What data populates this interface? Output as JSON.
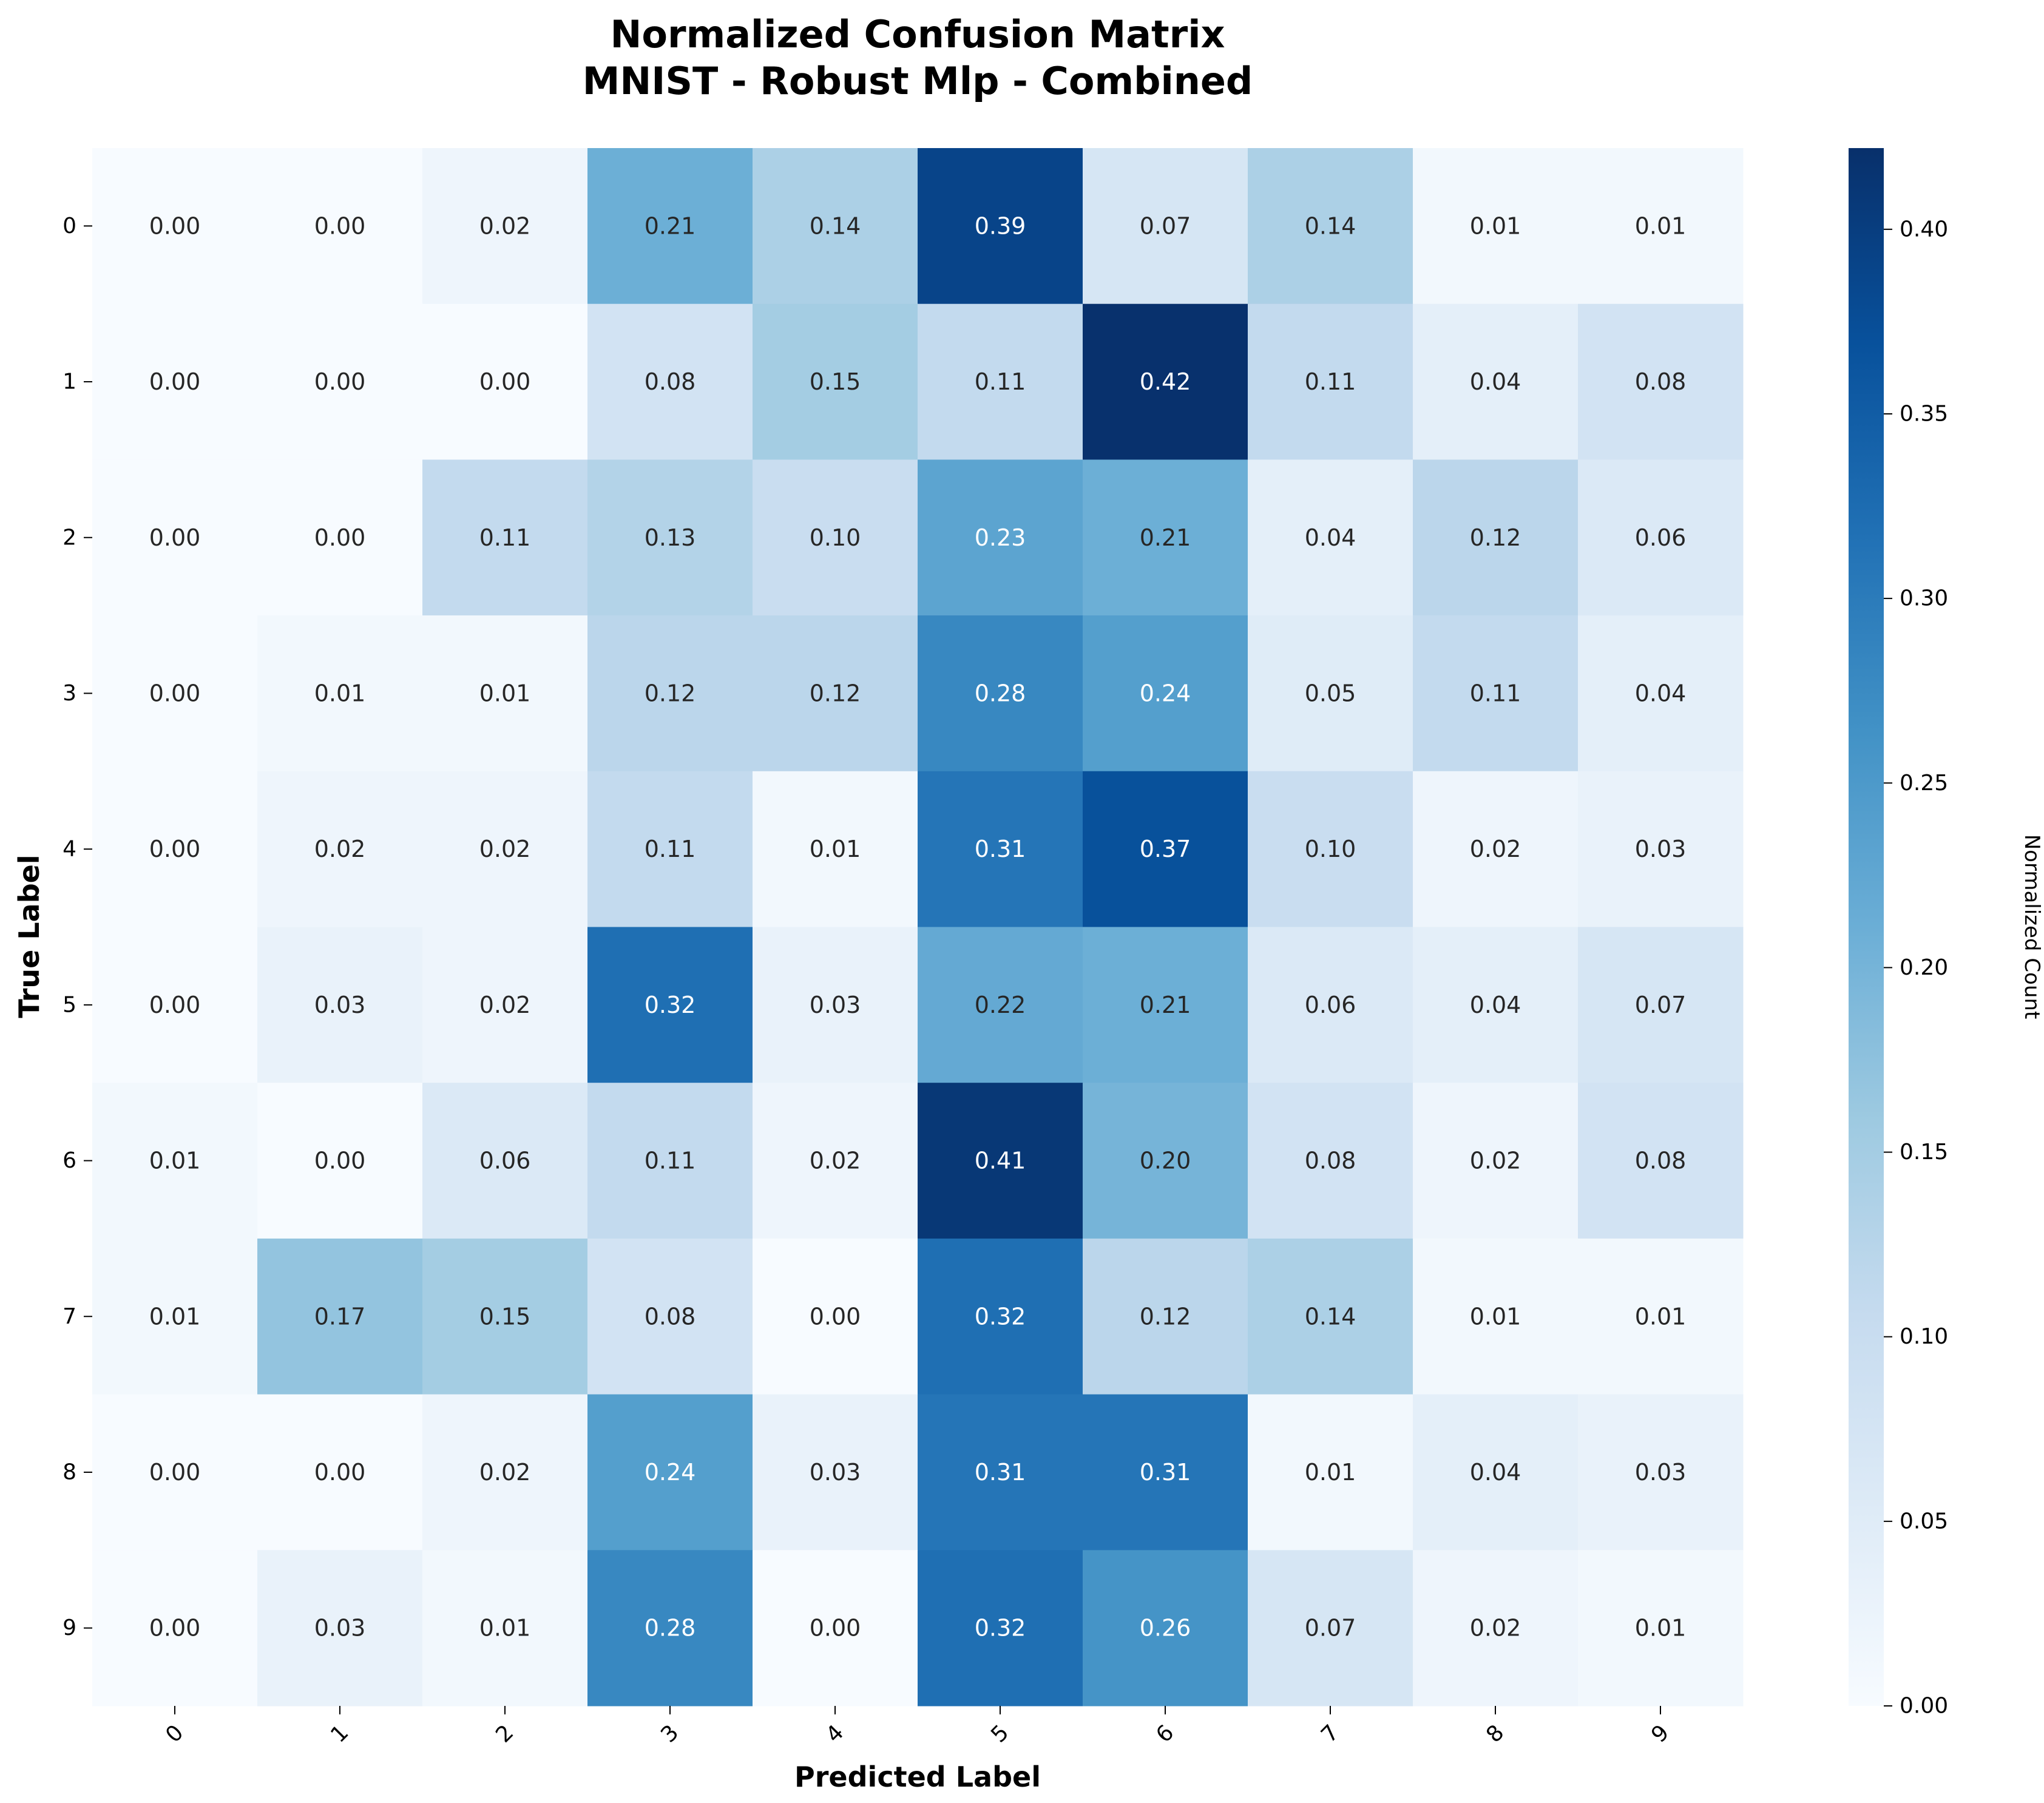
{
  "chart_data": {
    "type": "heatmap",
    "title_line1": "Normalized Confusion Matrix",
    "title_line2": "MNIST - Robust Mlp - Combined",
    "xlabel": "Predicted Label",
    "ylabel": "True Label",
    "x_categories": [
      "0",
      "1",
      "2",
      "3",
      "4",
      "5",
      "6",
      "7",
      "8",
      "9"
    ],
    "y_categories": [
      "0",
      "1",
      "2",
      "3",
      "4",
      "5",
      "6",
      "7",
      "8",
      "9"
    ],
    "values": [
      [
        0.0,
        0.0,
        0.02,
        0.21,
        0.14,
        0.39,
        0.07,
        0.14,
        0.01,
        0.01
      ],
      [
        0.0,
        0.0,
        0.0,
        0.08,
        0.15,
        0.11,
        0.42,
        0.11,
        0.04,
        0.08
      ],
      [
        0.0,
        0.0,
        0.11,
        0.13,
        0.1,
        0.23,
        0.21,
        0.04,
        0.12,
        0.06
      ],
      [
        0.0,
        0.01,
        0.01,
        0.12,
        0.12,
        0.28,
        0.24,
        0.05,
        0.11,
        0.04
      ],
      [
        0.0,
        0.02,
        0.02,
        0.11,
        0.01,
        0.31,
        0.37,
        0.1,
        0.02,
        0.03
      ],
      [
        0.0,
        0.03,
        0.02,
        0.32,
        0.03,
        0.22,
        0.21,
        0.06,
        0.04,
        0.07
      ],
      [
        0.01,
        0.0,
        0.06,
        0.11,
        0.02,
        0.41,
        0.2,
        0.08,
        0.02,
        0.08
      ],
      [
        0.01,
        0.17,
        0.15,
        0.08,
        0.0,
        0.32,
        0.12,
        0.14,
        0.01,
        0.01
      ],
      [
        0.0,
        0.0,
        0.02,
        0.24,
        0.03,
        0.31,
        0.31,
        0.01,
        0.04,
        0.03
      ],
      [
        0.0,
        0.03,
        0.01,
        0.28,
        0.0,
        0.32,
        0.26,
        0.07,
        0.02,
        0.01
      ]
    ],
    "colorbar": {
      "label": "Normalized Count",
      "range": [
        0.0,
        0.422
      ],
      "ticks": [
        "0.00",
        "0.05",
        "0.10",
        "0.15",
        "0.20",
        "0.25",
        "0.30",
        "0.35",
        "0.40"
      ]
    },
    "colormap": "Blues",
    "colors": [
      "#f7fbff",
      "#deebf7",
      "#c6dbef",
      "#9ecae1",
      "#6baed6",
      "#4292c6",
      "#2171b5",
      "#08519c",
      "#08306b"
    ]
  }
}
